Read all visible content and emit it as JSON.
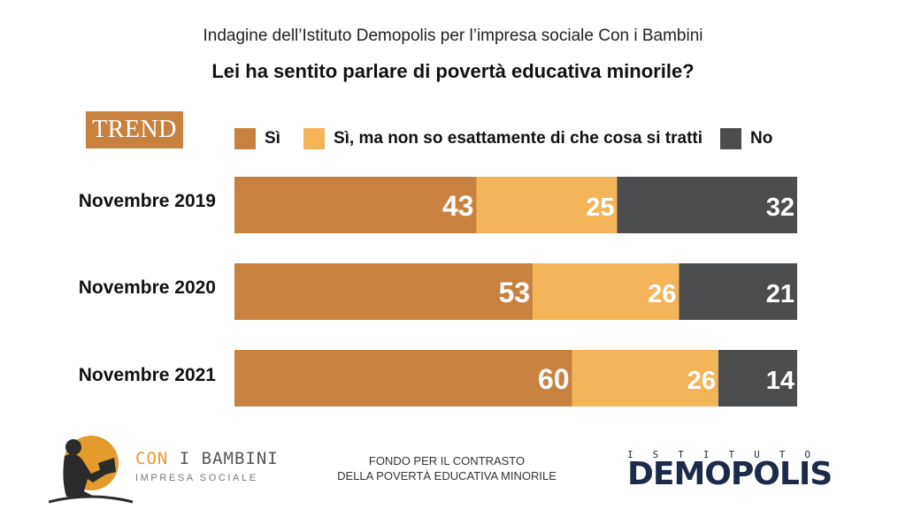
{
  "header": {
    "subtitle": "Indagine dell’Istituto Demopolis per l’impresa sociale Con i Bambini",
    "title": "Lei ha sentito parlare di povertà educativa minorile?"
  },
  "badge": {
    "label": "TREND"
  },
  "colors": {
    "si": "#c8813e",
    "si_ma": "#f4b459",
    "no": "#4b4d4f",
    "badge": "#c8813e"
  },
  "chart_data": {
    "type": "bar",
    "orientation": "horizontal",
    "stacked": true,
    "categories": [
      "Novembre 2019",
      "Novembre 2020",
      "Novembre 2021"
    ],
    "series": [
      {
        "name": "Sì",
        "color": "#c8813e",
        "values": [
          43,
          53,
          60
        ]
      },
      {
        "name": "Sì, ma non so esattamente di che cosa si tratti",
        "color": "#f4b459",
        "values": [
          25,
          26,
          26
        ]
      },
      {
        "name": "No",
        "color": "#4b4d4f",
        "values": [
          32,
          21,
          14
        ]
      }
    ],
    "xlim": [
      0,
      100
    ],
    "legend_position": "top",
    "grid": false
  },
  "footer": {
    "brand_left_title_a": "CON",
    "brand_left_title_b": "I BAMBINI",
    "brand_left_subtitle": "IMPRESA SOCIALE",
    "note_line1": "FONDO PER IL CONTRASTO",
    "note_line2": "DELLA POVERTÀ EDUCATIVA MINORILE",
    "brand_right_top": "ISTITUTO",
    "brand_right_main": "DEMOPOLIS"
  }
}
